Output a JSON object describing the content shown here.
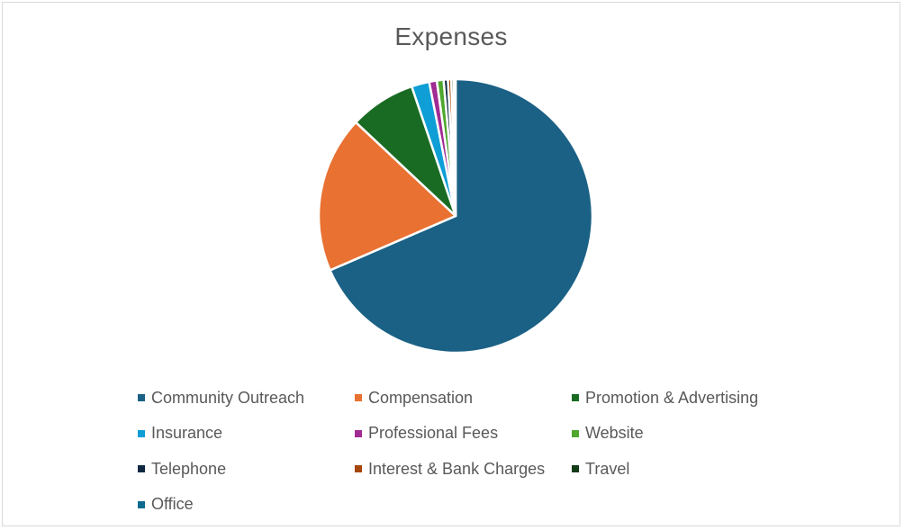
{
  "chart_data": {
    "type": "pie",
    "title": "Expenses",
    "categories": [
      "Community Outreach",
      "Compensation",
      "Promotion & Advertising",
      "Insurance",
      "Professional Fees",
      "Website",
      "Telephone",
      "Interest & Bank Charges",
      "Travel",
      "Office"
    ],
    "values": [
      68.5,
      18.5,
      7.8,
      2.1,
      0.9,
      0.8,
      0.5,
      0.4,
      0.3,
      0.2
    ],
    "colors": [
      "#1b6185",
      "#e97132",
      "#196b24",
      "#0f9ed5",
      "#a02b93",
      "#4ea72e",
      "#0e2841",
      "#a5460a",
      "#123c17",
      "#0b6b8f"
    ],
    "legend_position": "bottom",
    "start_angle_deg": 0,
    "direction": "clockwise"
  }
}
